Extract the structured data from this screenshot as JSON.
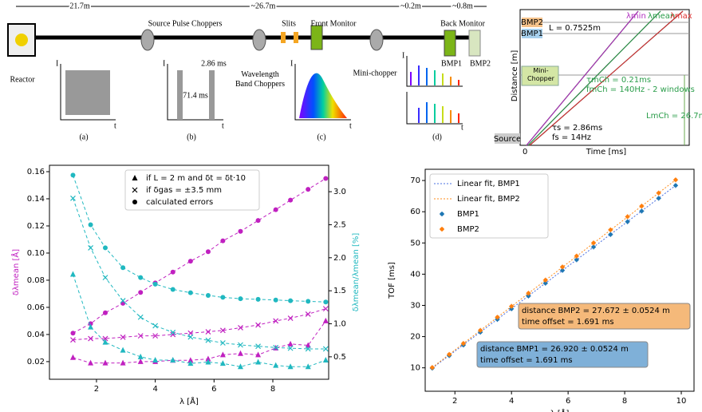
{
  "diagram": {
    "dist_1": "21.7m",
    "dist_2": "~26.7m",
    "dist_3": "~0.2m",
    "dist_4": "~0.8m",
    "reactor": "Reactor",
    "source_choppers": "Source Pulse Choppers",
    "band_choppers": "Wavelength Band Choppers",
    "slits": "Slits",
    "front_monitor": "Front Monitor",
    "mini_chopper": "Mini-chopper",
    "back_monitor": "Back Monitor",
    "bm1": "BMP1",
    "bm2": "BMP2",
    "period": "71.4 ms",
    "pulse": "2.86 ms",
    "axis_i": "I",
    "axis_t": "t",
    "panel_a": "(a)",
    "panel_b": "(b)",
    "panel_c": "(c)",
    "panel_d": "(d)"
  },
  "timing": {
    "bm2": "BMP2",
    "bm1": "BMP1",
    "l_label": "L = 0.7525m",
    "lmin": "λmin",
    "lmean": "λmean",
    "lmax": "λmax",
    "mini": "Mini-Chopper",
    "tau_mch": "τmCh = 0.21ms",
    "f_mch": "fmCh = 140Hz - 2 windows",
    "l_mch": "LmCh = 26.7m",
    "tau_s": "τs = 2.86ms",
    "f_s": "fs = 14Hz",
    "source": "Source",
    "ylabel": "Distance [m]",
    "xlabel": "Time [ms]",
    "zero": "0"
  },
  "chart_data": [
    {
      "type": "line",
      "xlabel": "λ [Å]",
      "ylabel": "δλmean [Å]",
      "y2label": "δλmean/λmean [%]",
      "ylabel_color": "#c020c0",
      "y2label_color": "#20b8c0",
      "x": [
        1.2,
        1.8,
        2.3,
        2.9,
        3.5,
        4.0,
        4.6,
        5.2,
        5.8,
        6.3,
        6.9,
        7.5,
        8.1,
        8.6,
        9.2,
        9.8
      ],
      "xlim": [
        0.4,
        9.9
      ],
      "xticks": [
        2,
        4,
        6,
        8
      ],
      "ylim": [
        0.007,
        0.1647
      ],
      "yticks": [
        0.02,
        0.04,
        0.06,
        0.08,
        {
          "value": 0.1,
          "label": "0.10"
        },
        0.12,
        0.14,
        0.16
      ],
      "y2lim": [
        0.16,
        3.4
      ],
      "y2ticks": [
        0.5,
        {
          "value": 1,
          "label": "1.0"
        },
        1.5,
        {
          "value": 2,
          "label": "2.0"
        },
        2.5,
        {
          "value": 3,
          "label": "3.0"
        }
      ],
      "legend_loc": "upper center",
      "legend": [
        {
          "marker": "triangle",
          "label": "if L = 2 m and δt = δt·10"
        },
        {
          "marker": "x",
          "label": "if δgas = ±3.5 mm"
        },
        {
          "marker": "circle",
          "label": "calculated errors"
        }
      ],
      "series": [
        {
          "color": "#c020c0",
          "marker": "circle",
          "linestyle": "dashed",
          "values": [
            0.041,
            0.048,
            0.056,
            0.063,
            0.071,
            0.078,
            0.086,
            0.094,
            0.101,
            0.109,
            0.116,
            0.124,
            0.132,
            0.139,
            0.147,
            0.155
          ]
        },
        {
          "color": "#c020c0",
          "marker": "x",
          "linestyle": "dashed",
          "values": [
            0.036,
            0.037,
            0.037,
            0.038,
            0.039,
            0.039,
            0.04,
            0.041,
            0.042,
            0.043,
            0.045,
            0.047,
            0.05,
            0.052,
            0.055,
            0.059
          ]
        },
        {
          "color": "#c020c0",
          "marker": "triangle",
          "linestyle": "dashed",
          "values": [
            0.023,
            0.019,
            0.019,
            0.019,
            0.02,
            0.02,
            0.021,
            0.021,
            0.022,
            0.025,
            0.026,
            0.025,
            0.03,
            0.033,
            0.032,
            0.05
          ]
        },
        {
          "color": "#20b8c0",
          "marker": "circle",
          "linestyle": "dashed",
          "axis": "y2",
          "values": [
            3.25,
            2.5,
            2.15,
            1.85,
            1.7,
            1.6,
            1.52,
            1.47,
            1.43,
            1.4,
            1.38,
            1.37,
            1.36,
            1.35,
            1.34,
            1.33
          ]
        },
        {
          "color": "#20b8c0",
          "marker": "x",
          "linestyle": "dashed",
          "axis": "y2",
          "values": [
            2.9,
            2.15,
            1.7,
            1.35,
            1.1,
            0.97,
            0.87,
            0.8,
            0.75,
            0.71,
            0.68,
            0.66,
            0.64,
            0.63,
            0.62,
            0.62
          ]
        },
        {
          "color": "#20b8c0",
          "marker": "triangle",
          "linestyle": "dashed",
          "axis": "y2",
          "values": [
            1.75,
            0.95,
            0.72,
            0.6,
            0.5,
            0.45,
            0.45,
            0.4,
            0.42,
            0.4,
            0.35,
            0.42,
            0.37,
            0.35,
            0.35,
            0.45
          ]
        }
      ]
    },
    {
      "type": "line",
      "xlabel": "λ [Å]",
      "ylabel": "TOF [ms]",
      "x": [
        1.2,
        1.8,
        2.3,
        2.9,
        3.5,
        4.0,
        4.6,
        5.2,
        5.8,
        6.3,
        6.9,
        7.5,
        8.1,
        8.6,
        9.2,
        9.8
      ],
      "xlim": [
        0.95,
        10.45
      ],
      "xticks": [
        2,
        4,
        6,
        8,
        10
      ],
      "ylim": [
        2.5,
        73.6
      ],
      "yticks": [
        10,
        20,
        30,
        40,
        50,
        60,
        70
      ],
      "legend_loc": "upper left",
      "series": [
        {
          "name": "Linear fit, BMP1",
          "color": "#4a6fe0",
          "linestyle": "dotted",
          "x": [
            1.2,
            9.8
          ],
          "values": [
            9.9,
            68.4
          ]
        },
        {
          "name": "Linear fit, BMP2",
          "color": "#ff8c1a",
          "linestyle": "dotted",
          "x": [
            1.2,
            9.8
          ],
          "values": [
            10.1,
            70.2
          ]
        },
        {
          "name": "BMP1",
          "color": "#1f77b4",
          "marker": "errorbar",
          "values": [
            9.9,
            13.9,
            17.3,
            21.4,
            25.5,
            28.9,
            33.0,
            37.1,
            41.2,
            44.6,
            48.7,
            52.7,
            56.8,
            60.2,
            64.3,
            68.4
          ]
        },
        {
          "name": "BMP2",
          "color": "#ff7f0e",
          "marker": "errorbar",
          "values": [
            10.1,
            14.3,
            17.8,
            22.0,
            26.2,
            29.7,
            33.9,
            38.1,
            42.3,
            45.8,
            50.0,
            54.2,
            58.4,
            61.8,
            66.0,
            70.2
          ]
        }
      ],
      "annotations": [
        {
          "lines": [
            "distance BMP2 = 27.672 ± 0.0524 m",
            "time offset = 1.691 ms"
          ],
          "color": "#f5b97a"
        },
        {
          "lines": [
            "distance BMP1 = 26.920 ± 0.0524 m",
            "time offset = 1.691 ms"
          ],
          "color": "#7fb0d8"
        }
      ]
    }
  ]
}
